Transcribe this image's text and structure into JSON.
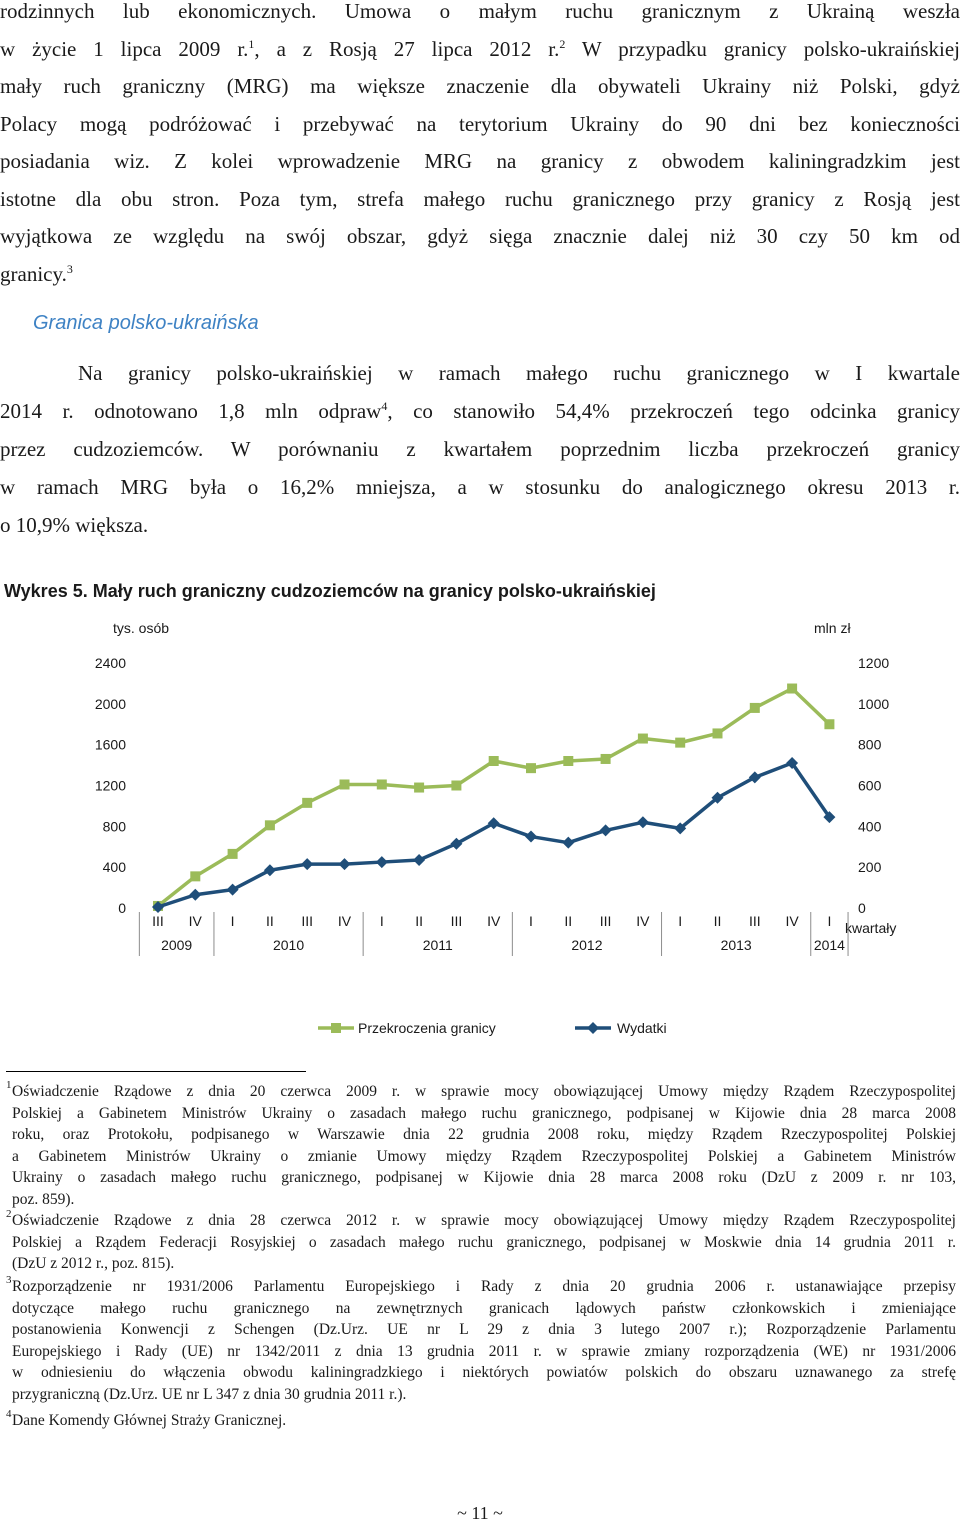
{
  "intro": [
    "rodzinnych lub ekonomicznych. Umowa o małym ruchu granicznym z Ukrainą weszła",
    [
      "w życie 1 lipca 2009 r.",
      "1",
      ", a z Rosją 27 lipca 2012 r.",
      "2",
      " W przypadku granicy polsko-ukraińskiej"
    ],
    "mały ruch graniczny (MRG) ma większe znaczenie dla obywateli Ukrainy niż Polski, gdyż",
    "Polacy mogą podróżować i przebywać na terytorium Ukrainy do 90 dni bez konieczności",
    "posiadania wiz. Z kolei wprowadzenie MRG na granicy z obwodem kaliningradzkim jest",
    "istotne dla obu stron. Poza tym, strefa małego ruchu granicznego przy granicy z Rosją jest",
    "wyjątkowa ze względu na swój obszar, gdyż sięga znacznie dalej niż 30 czy 50 km od",
    [
      "granicy.",
      "3"
    ]
  ],
  "section_heading": "Granica polsko-ukraińska",
  "para2": [
    "Na granicy polsko-ukraińskiej w ramach małego ruchu granicznego w I kwartale",
    [
      "2014 r. odnotowano 1,8 mln odpraw",
      "4",
      ", co stanowiło 54,4% przekroczeń tego odcinka granicy"
    ],
    "przez cudzoziemców. W porównaniu z kwartałem poprzednim liczba przekroczeń granicy",
    "w ramach MRG była o 16,2% mniejsza, a w stosunku do analogicznego okresu 2013 r.",
    "o 10,9% większa."
  ],
  "figure_title": "Wykres 5.  Mały ruch graniczny cudzoziemców na granicy polsko-ukraińskiej",
  "chart_data": {
    "type": "line",
    "left_axis_label": "tys. osób",
    "right_axis_label": "mln zł",
    "x_axis_label": "kwartały",
    "left_ylim": [
      0,
      2400
    ],
    "left_ticks": [
      "0",
      "400",
      "800",
      "1200",
      "1600",
      "2000",
      "2400"
    ],
    "right_ylim": [
      0,
      1200
    ],
    "right_ticks": [
      "0",
      "200",
      "400",
      "600",
      "800",
      "1000",
      "1200"
    ],
    "categories": [
      "III",
      "IV",
      "I",
      "II",
      "III",
      "IV",
      "I",
      "II",
      "III",
      "IV",
      "I",
      "II",
      "III",
      "IV",
      "I",
      "II",
      "III",
      "IV",
      "I"
    ],
    "years": [
      {
        "label": "2009",
        "start": 0,
        "span": 2
      },
      {
        "label": "2010",
        "start": 2,
        "span": 4
      },
      {
        "label": "2011",
        "start": 6,
        "span": 4
      },
      {
        "label": "2012",
        "start": 10,
        "span": 4
      },
      {
        "label": "2013",
        "start": 14,
        "span": 4
      },
      {
        "label": "2014",
        "start": 18,
        "span": 1
      }
    ],
    "series": [
      {
        "name": "Przekroczenia granicy",
        "axis": "left",
        "color": "#9bbb59",
        "marker": "square",
        "values": [
          20,
          310,
          530,
          810,
          1030,
          1210,
          1210,
          1180,
          1200,
          1440,
          1370,
          1440,
          1460,
          1660,
          1620,
          1710,
          1960,
          2150,
          1800
        ]
      },
      {
        "name": "Wydatki",
        "axis": "right",
        "color": "#1f4e79",
        "marker": "diamond",
        "values": [
          5,
          65,
          90,
          185,
          215,
          215,
          225,
          235,
          315,
          415,
          350,
          320,
          380,
          420,
          390,
          540,
          640,
          710,
          445
        ]
      }
    ],
    "grid": false,
    "legend_position": "bottom"
  },
  "footnotes": [
    {
      "num": "1",
      "lines": [
        "Oświadczenie Rządowe z dnia 20 czerwca 2009 r. w sprawie mocy obowiązującej Umowy między Rządem Rzeczypospolitej",
        "Polskiej a Gabinetem Ministrów Ukrainy o zasadach małego ruchu granicznego, podpisanej w Kijowie dnia 28 marca 2008",
        "roku, oraz Protokołu, podpisanego w Warszawie dnia 22 grudnia 2008 roku, między Rządem Rzeczypospolitej Polskiej",
        "a Gabinetem Ministrów Ukrainy o zmianie Umowy między Rządem Rzeczypospolitej Polskiej a Gabinetem Ministrów",
        "Ukrainy o zasadach małego ruchu granicznego, podpisanej w Kijowie dnia 28 marca 2008 roku (DzU z 2009 r. nr 103,",
        "poz. 859)."
      ]
    },
    {
      "num": "2",
      "lines": [
        "Oświadczenie Rządowe z dnia 28 czerwca 2012 r. w sprawie mocy obowiązującej Umowy między Rządem Rzeczypospolitej",
        "Polskiej a Rządem Federacji Rosyjskiej o zasadach małego ruchu granicznego, podpisanej w Moskwie dnia 14 grudnia 2011 r.",
        "(DzU z 2012 r., poz. 815)."
      ]
    },
    {
      "num": "3",
      "lines": [
        "Rozporządzenie nr 1931/2006 Parlamentu Europejskiego i Rady z dnia 20 grudnia 2006 r. ustanawiające przepisy",
        "dotyczące małego ruchu granicznego na zewnętrznych granicach lądowych państw członkowskich i zmieniające",
        "postanowienia Konwencji z Schengen (Dz.Urz. UE nr L 29 z dnia 3 lutego 2007 r.); Rozporządzenie Parlamentu",
        "Europejskiego i Rady (UE) nr 1342/2011 z dnia 13 grudnia 2011 r. w sprawie zmiany rozporządzenia (WE) nr 1931/2006",
        "w odniesieniu do włączenia obwodu kaliningradzkiego i niektórych powiatów polskich do obszaru uznawanego za strefę",
        "przygraniczną (Dz.Urz. UE nr L 347 z dnia 30 grudnia 2011 r.)."
      ]
    },
    {
      "num": "4",
      "lines": [
        "Dane Komendy Głównej Straży Granicznej."
      ]
    }
  ],
  "page_number": "~ 11 ~"
}
